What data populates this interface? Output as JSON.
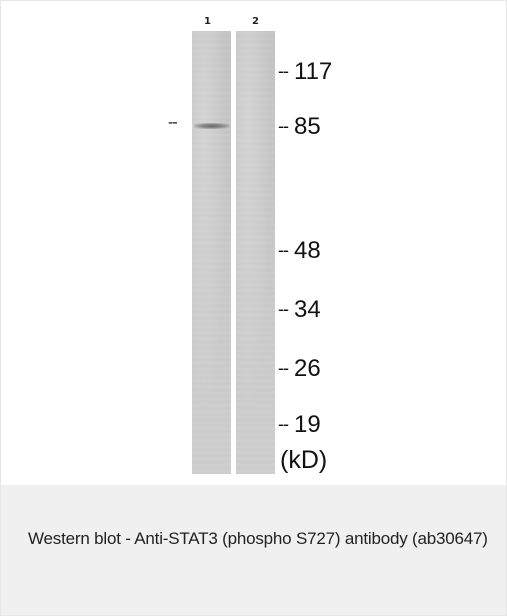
{
  "lanes": [
    "1",
    "2"
  ],
  "band_marker": "--",
  "mw_markers": [
    {
      "dash": "--",
      "value": "117"
    },
    {
      "dash": "--",
      "value": "85"
    },
    {
      "dash": "--",
      "value": "48"
    },
    {
      "dash": "--",
      "value": "34"
    },
    {
      "dash": "--",
      "value": "26"
    },
    {
      "dash": "--",
      "value": "19"
    }
  ],
  "unit": "(kD)",
  "caption": "Western blot - Anti-STAT3 (phospho S727) antibody (ab30647)"
}
